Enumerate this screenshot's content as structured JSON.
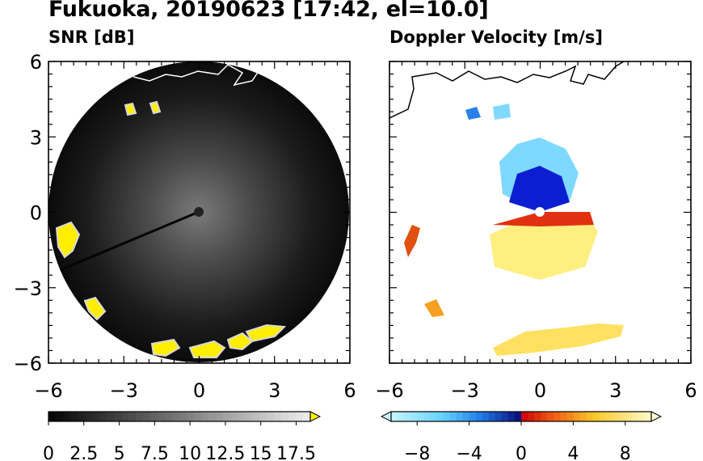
{
  "title": "Fukuoka, 20190623 [17:42, el=10.0]",
  "colors": {
    "snr_background": "#0b0b0b",
    "snr_echo": "#ffee00",
    "doppler_away": "#ffee80",
    "doppler_toward": "#7fd8ff",
    "coastline_snr": "#ffffff",
    "coastline_doppler": "#000000"
  },
  "chart_data": [
    {
      "type": "heatmap",
      "title": "SNR [dB]",
      "xlim": [
        -6,
        6
      ],
      "ylim": [
        -6,
        6
      ],
      "x_ticks": [
        "-6",
        "-3",
        "0",
        "3",
        "6"
      ],
      "y_ticks": [
        "6",
        "3",
        "0",
        "-3",
        "-6"
      ],
      "colorbar": {
        "min": 0,
        "max": 18.5,
        "tick_labels": [
          "0",
          "2.5",
          "5",
          "7.5",
          "10",
          "12.5",
          "15",
          "17.5"
        ],
        "extend": "max"
      }
    },
    {
      "type": "heatmap",
      "title": "Doppler Velocity [m/s]",
      "xlim": [
        -6,
        6
      ],
      "ylim": [
        -6,
        6
      ],
      "x_ticks": [
        "-6",
        "-3",
        "0",
        "3",
        "6"
      ],
      "colorbar": {
        "min": -10,
        "max": 10,
        "tick_labels": [
          "−8",
          "−4",
          "0",
          "4",
          "8"
        ],
        "extend": "both"
      }
    }
  ]
}
